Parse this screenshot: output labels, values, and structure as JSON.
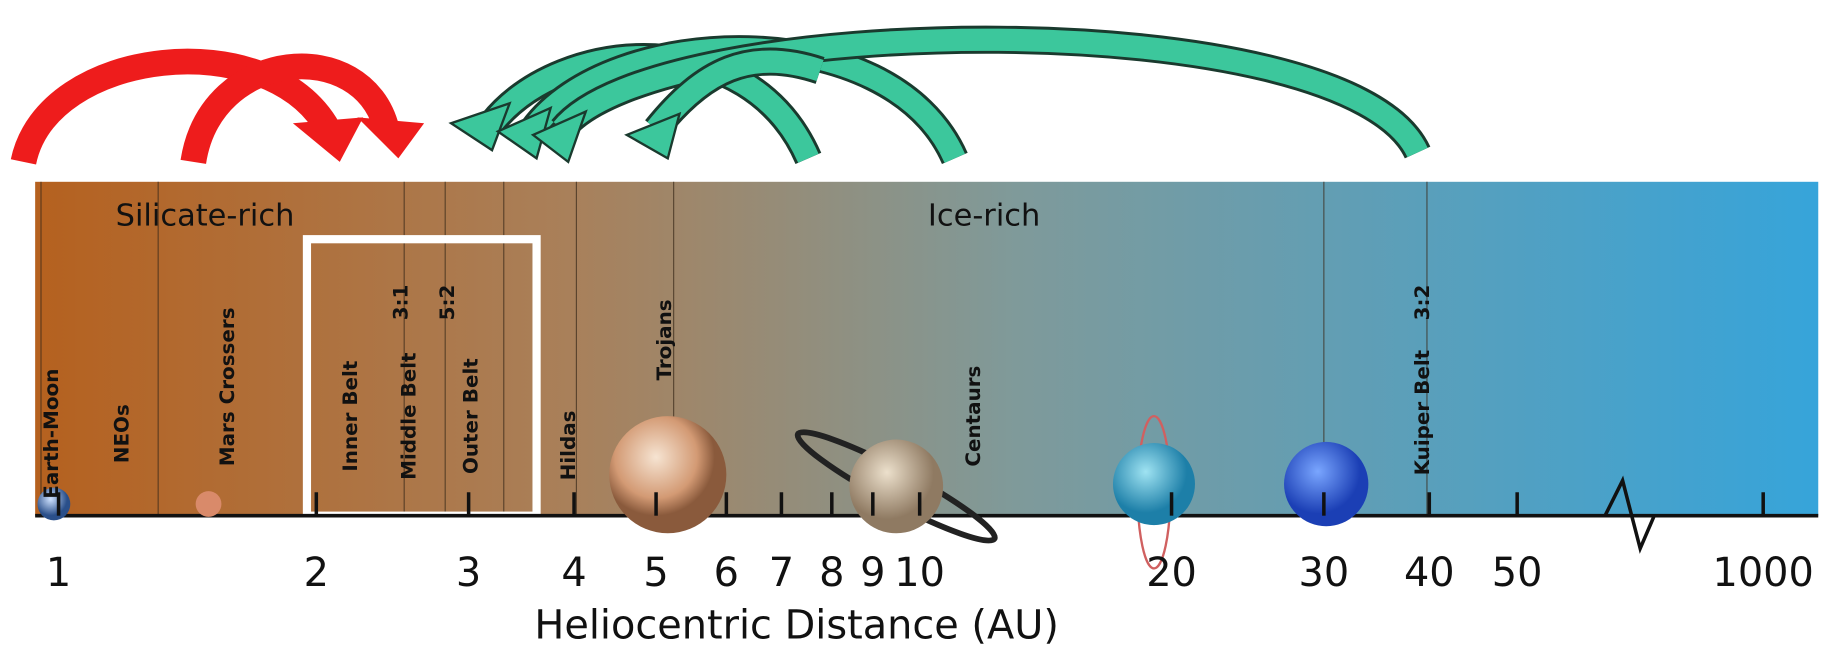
{
  "regions": [
    {
      "label": "Silicate-rich"
    },
    {
      "label": "Ice-rich"
    }
  ],
  "zones": [
    "Earth-Moon",
    "NEOs",
    "Mars Crossers",
    "Inner Belt",
    "Middle Belt",
    "3:1",
    "5:2",
    "Outer Belt",
    "Hildas",
    "Trojans",
    "Centaurs",
    "Kuiper Belt",
    "3:2"
  ],
  "axis": {
    "title": "Heliocentric Distance (AU)",
    "ticks": [
      "1",
      "2",
      "3",
      "4",
      "5",
      "6",
      "7",
      "8",
      "9",
      "10",
      "20",
      "30",
      "40",
      "50",
      "1000"
    ]
  }
}
